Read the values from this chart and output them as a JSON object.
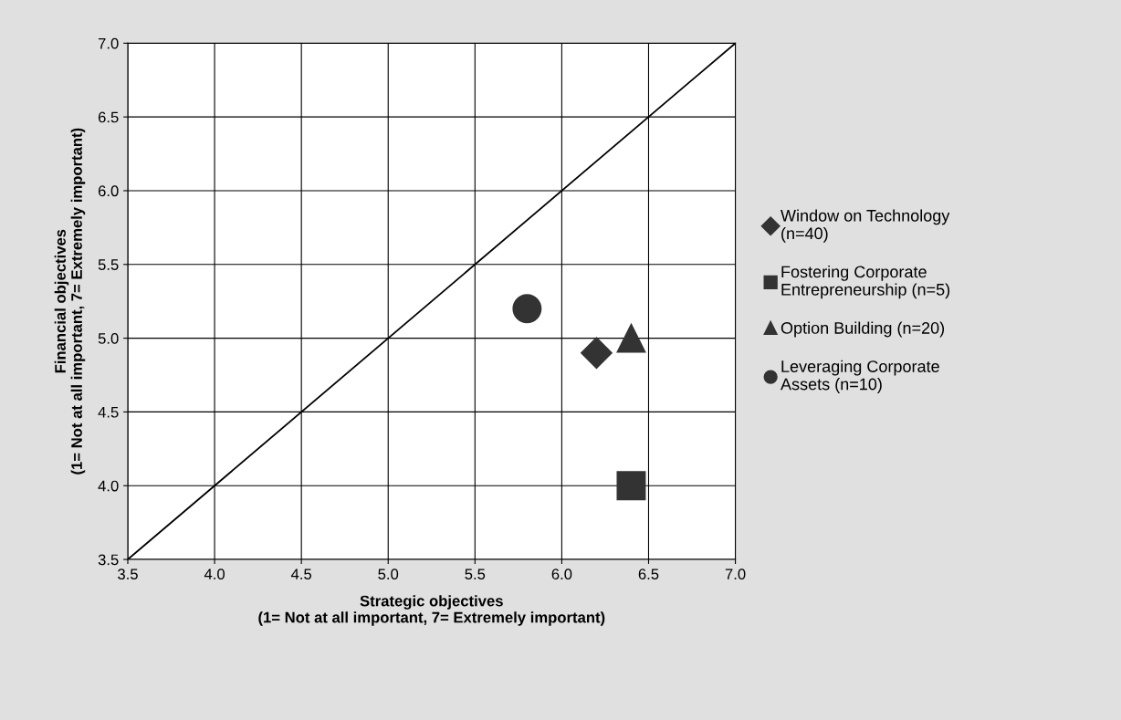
{
  "chart_data": {
    "type": "scatter",
    "xlabel": "Strategic objectives\n(1= Not at all important, 7= Extremely important)",
    "ylabel": "Financial objectives\n(1= Not at all important, 7= Extremely important)",
    "xlim": [
      3.5,
      7.0
    ],
    "ylim": [
      3.5,
      7.0
    ],
    "xticks": [
      {
        "value": 3.5,
        "label": "3.5"
      },
      {
        "value": 4,
        "label": "4.0"
      },
      {
        "value": 4.5,
        "label": "4.5"
      },
      {
        "value": 5,
        "label": "5.0"
      },
      {
        "value": 5.5,
        "label": "5.5"
      },
      {
        "value": 6,
        "label": "6.0"
      },
      {
        "value": 6.5,
        "label": "6.5"
      },
      {
        "value": 7,
        "label": "7.0"
      }
    ],
    "yticks": [
      {
        "value": 3.5,
        "label": "3.5"
      },
      {
        "value": 4,
        "label": "4.0"
      },
      {
        "value": 4.5,
        "label": "4.5"
      },
      {
        "value": 5,
        "label": "5.0"
      },
      {
        "value": 5.5,
        "label": "5.5"
      },
      {
        "value": 6,
        "label": "6.0"
      },
      {
        "value": 6.5,
        "label": "6.5"
      },
      {
        "value": 7,
        "label": "7.0"
      }
    ],
    "grid": true,
    "legend": "right",
    "series": [
      {
        "type": "line",
        "color": "#000000",
        "x": [
          3.5,
          7.0
        ],
        "values": [
          3.5,
          7.0
        ],
        "marker": "none",
        "line_style": "solid"
      },
      {
        "name": "Window on Technology\n(n=40)",
        "color": "#333333",
        "marker": "diamond",
        "x": [
          6.2
        ],
        "values": [
          4.9
        ]
      },
      {
        "name": "Fostering Corporate\nEntrepreneurship (n=5)",
        "color": "#333333",
        "marker": "square",
        "x": [
          6.4
        ],
        "values": [
          4.0
        ]
      },
      {
        "name": "Option Building (n=20)",
        "color": "#333333",
        "marker": "triangle",
        "x": [
          6.4
        ],
        "values": [
          5.0
        ]
      },
      {
        "name": "Leveraging Corporate\nAssets (n=10)",
        "color": "#333333",
        "marker": "circle",
        "x": [
          5.8
        ],
        "values": [
          5.2
        ]
      }
    ]
  }
}
